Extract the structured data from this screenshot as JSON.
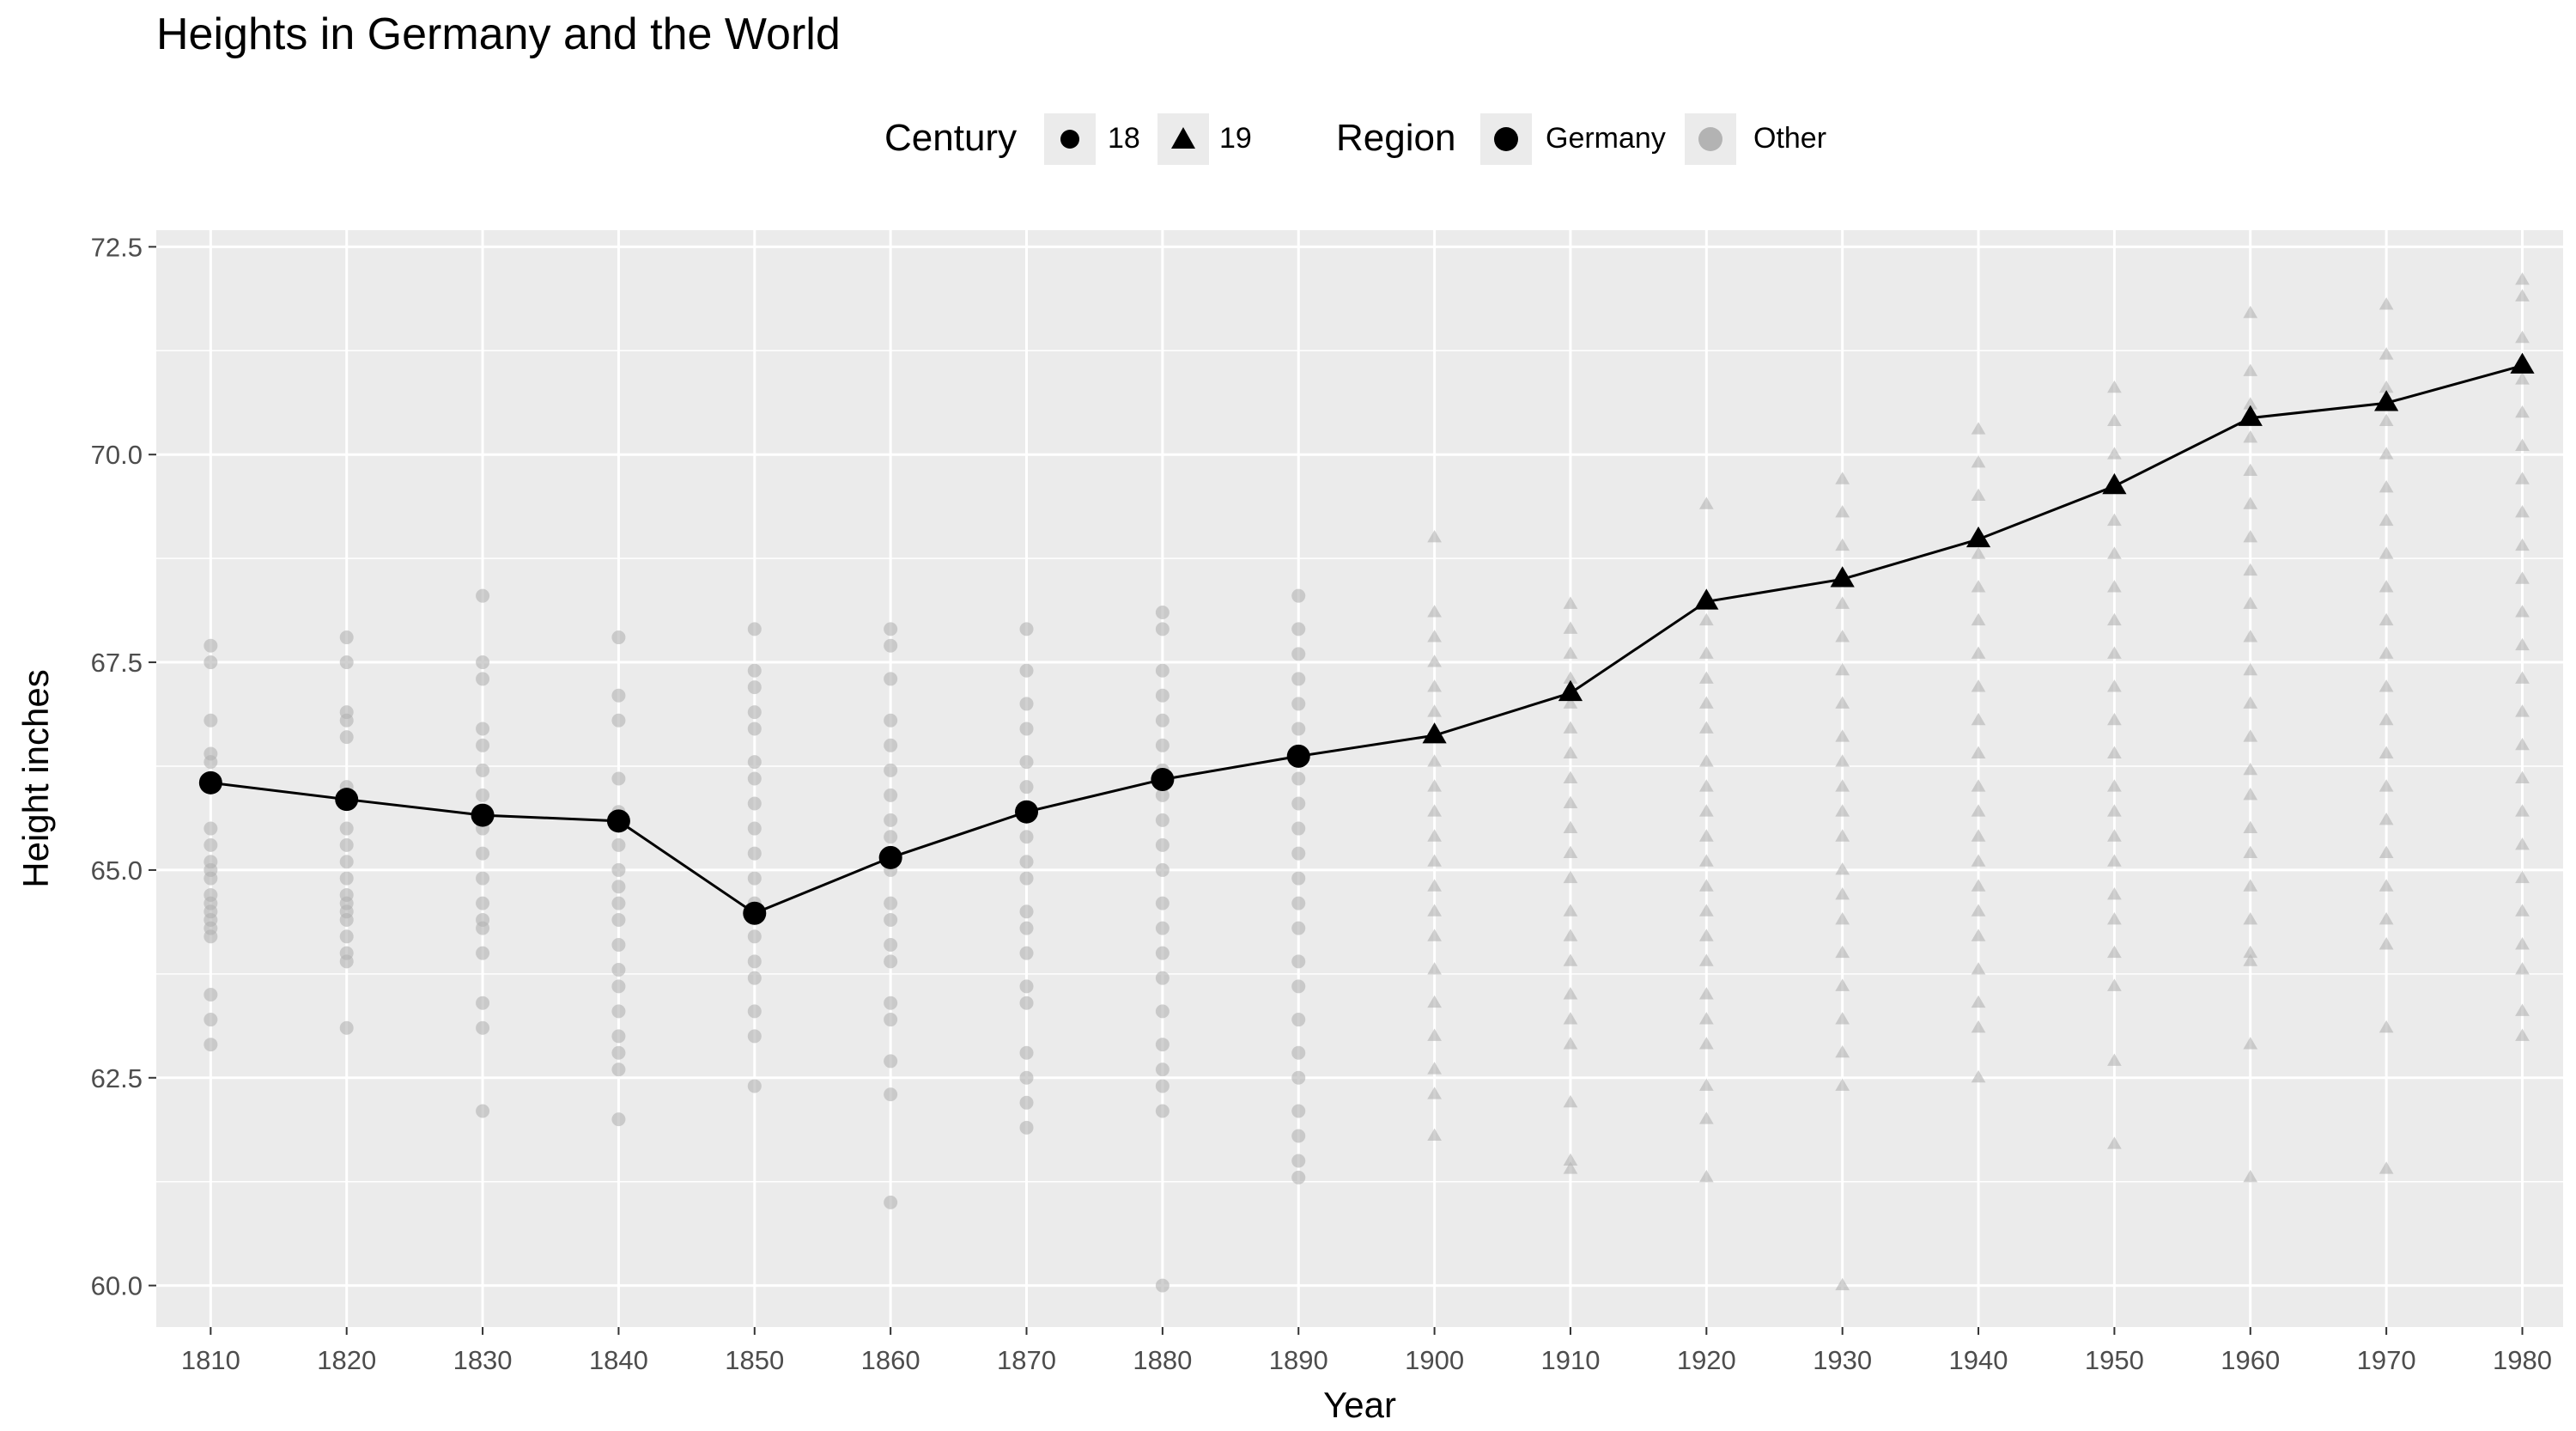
{
  "chart_data": {
    "type": "line",
    "title": "Heights in Germany and the World",
    "xlabel": "Year",
    "ylabel": "Height inches",
    "x_ticks": [
      1810,
      1820,
      1830,
      1840,
      1850,
      1860,
      1870,
      1880,
      1890,
      1900,
      1910,
      1920,
      1930,
      1940,
      1950,
      1960,
      1970,
      1980
    ],
    "y_ticks": [
      "60.0",
      "62.5",
      "65.0",
      "67.5",
      "70.0",
      "72.5"
    ],
    "xlim": [
      1806,
      1983
    ],
    "ylim": [
      59.5,
      72.7
    ],
    "grid": true,
    "legend_placement": "top",
    "legend": {
      "century": {
        "title": "Century",
        "items": [
          "18",
          "19"
        ]
      },
      "region": {
        "title": "Region",
        "items": [
          "Germany",
          "Other"
        ]
      }
    },
    "colors": {
      "germany": "#000000",
      "other": "#b3b3b3",
      "panel": "#ebebeb",
      "grid": "#ffffff"
    },
    "series": [
      {
        "name": "Germany",
        "x": [
          1810,
          1820,
          1830,
          1840,
          1850,
          1860,
          1870,
          1880,
          1890,
          1900,
          1910,
          1920,
          1930,
          1940,
          1950,
          1960,
          1970,
          1980
        ],
        "values": [
          66.05,
          65.85,
          65.66,
          65.59,
          64.48,
          65.15,
          65.7,
          66.09,
          66.37,
          66.62,
          67.13,
          68.23,
          68.5,
          68.98,
          69.62,
          70.44,
          70.62,
          71.07
        ],
        "century": [
          "18",
          "18",
          "18",
          "18",
          "18",
          "18",
          "18",
          "18",
          "18",
          "19",
          "19",
          "19",
          "19",
          "19",
          "19",
          "19",
          "19",
          "19"
        ]
      },
      {
        "name": "Other",
        "points": [
          {
            "x": 1810,
            "values": [
              67.7,
              67.5,
              66.8,
              66.4,
              66.3,
              65.5,
              65.3,
              65.1,
              65.0,
              64.9,
              64.7,
              64.6,
              64.5,
              64.4,
              64.3,
              64.2,
              63.5,
              63.2,
              62.9
            ]
          },
          {
            "x": 1820,
            "values": [
              67.8,
              67.5,
              66.9,
              66.8,
              66.6,
              66.0,
              65.5,
              65.3,
              65.1,
              64.9,
              64.7,
              64.6,
              64.5,
              64.4,
              64.2,
              64.0,
              63.9,
              63.1
            ]
          },
          {
            "x": 1830,
            "values": [
              68.3,
              67.5,
              67.3,
              66.7,
              66.5,
              66.2,
              65.9,
              65.5,
              65.2,
              64.9,
              64.6,
              64.4,
              64.3,
              64.0,
              63.4,
              63.1,
              62.1
            ]
          },
          {
            "x": 1840,
            "values": [
              67.8,
              67.1,
              66.8,
              66.1,
              65.7,
              65.3,
              65.0,
              64.8,
              64.6,
              64.4,
              64.1,
              63.8,
              63.6,
              63.3,
              63.0,
              62.8,
              62.6,
              62.0
            ]
          },
          {
            "x": 1850,
            "values": [
              67.9,
              67.4,
              67.2,
              66.9,
              66.7,
              66.3,
              66.1,
              65.8,
              65.5,
              65.2,
              64.9,
              64.6,
              64.2,
              63.9,
              63.7,
              63.3,
              63.0,
              62.4
            ]
          },
          {
            "x": 1860,
            "values": [
              67.9,
              67.7,
              67.3,
              66.8,
              66.5,
              66.2,
              65.9,
              65.6,
              65.4,
              65.0,
              64.6,
              64.4,
              64.1,
              63.9,
              63.4,
              63.2,
              62.7,
              62.3,
              61.0
            ]
          },
          {
            "x": 1870,
            "values": [
              67.9,
              67.4,
              67.0,
              66.7,
              66.3,
              66.0,
              65.7,
              65.4,
              65.1,
              64.9,
              64.5,
              64.3,
              64.0,
              63.6,
              63.4,
              62.8,
              62.5,
              62.2,
              61.9
            ]
          },
          {
            "x": 1880,
            "values": [
              68.1,
              67.9,
              67.4,
              67.1,
              66.8,
              66.5,
              66.2,
              65.9,
              65.6,
              65.3,
              65.0,
              64.6,
              64.3,
              64.0,
              63.7,
              63.3,
              62.9,
              62.6,
              62.4,
              62.1,
              60.0
            ]
          },
          {
            "x": 1890,
            "values": [
              68.3,
              67.9,
              67.6,
              67.3,
              67.0,
              66.7,
              66.4,
              66.1,
              65.8,
              65.5,
              65.2,
              64.9,
              64.6,
              64.3,
              63.9,
              63.6,
              63.2,
              62.8,
              62.5,
              62.1,
              61.8,
              61.5,
              61.3
            ]
          },
          {
            "x": 1900,
            "values": [
              69.0,
              68.1,
              67.8,
              67.5,
              67.2,
              66.9,
              66.6,
              66.3,
              66.0,
              65.7,
              65.4,
              65.1,
              64.8,
              64.5,
              64.2,
              63.8,
              63.4,
              63.0,
              62.6,
              62.3,
              61.8
            ]
          },
          {
            "x": 1910,
            "values": [
              68.2,
              67.9,
              67.6,
              67.3,
              67.0,
              66.7,
              66.4,
              66.1,
              65.8,
              65.5,
              65.2,
              64.9,
              64.5,
              64.2,
              63.9,
              63.5,
              63.2,
              62.9,
              62.2,
              61.5,
              61.4
            ]
          },
          {
            "x": 1920,
            "values": [
              69.4,
              68.0,
              67.6,
              67.3,
              67.0,
              66.7,
              66.3,
              66.0,
              65.7,
              65.4,
              65.1,
              64.8,
              64.5,
              64.2,
              63.9,
              63.5,
              63.2,
              62.9,
              62.4,
              62.0,
              61.3
            ]
          },
          {
            "x": 1930,
            "values": [
              69.7,
              69.3,
              68.9,
              68.2,
              67.8,
              67.4,
              67.0,
              66.6,
              66.3,
              66.0,
              65.7,
              65.4,
              65.0,
              64.7,
              64.4,
              64.0,
              63.6,
              63.2,
              62.8,
              62.4,
              60.0
            ]
          },
          {
            "x": 1940,
            "values": [
              70.3,
              69.9,
              69.5,
              68.8,
              68.4,
              68.0,
              67.6,
              67.2,
              66.8,
              66.4,
              66.0,
              65.7,
              65.4,
              65.1,
              64.8,
              64.5,
              64.2,
              63.8,
              63.4,
              63.1,
              62.5
            ]
          },
          {
            "x": 1950,
            "values": [
              70.8,
              70.4,
              70.0,
              69.6,
              69.2,
              68.8,
              68.4,
              68.0,
              67.6,
              67.2,
              66.8,
              66.4,
              66.0,
              65.7,
              65.4,
              65.1,
              64.7,
              64.4,
              64.0,
              63.6,
              62.7,
              61.7
            ]
          },
          {
            "x": 1960,
            "values": [
              71.7,
              71.0,
              70.6,
              70.2,
              69.8,
              69.4,
              69.0,
              68.6,
              68.2,
              67.8,
              67.4,
              67.0,
              66.6,
              66.2,
              65.9,
              65.5,
              65.2,
              64.8,
              64.4,
              64.0,
              63.9,
              62.9,
              61.3
            ]
          },
          {
            "x": 1970,
            "values": [
              71.8,
              71.2,
              70.8,
              70.4,
              70.0,
              69.6,
              69.2,
              68.8,
              68.4,
              68.0,
              67.6,
              67.2,
              66.8,
              66.4,
              66.0,
              65.6,
              65.2,
              64.8,
              64.4,
              64.1,
              63.1,
              61.4
            ]
          },
          {
            "x": 1980,
            "values": [
              72.1,
              71.9,
              71.4,
              70.9,
              70.5,
              70.1,
              69.7,
              69.3,
              68.9,
              68.5,
              68.1,
              67.7,
              67.3,
              66.9,
              66.5,
              66.1,
              65.7,
              65.3,
              64.9,
              64.5,
              64.1,
              63.8,
              63.3,
              63.0
            ]
          }
        ]
      }
    ]
  }
}
